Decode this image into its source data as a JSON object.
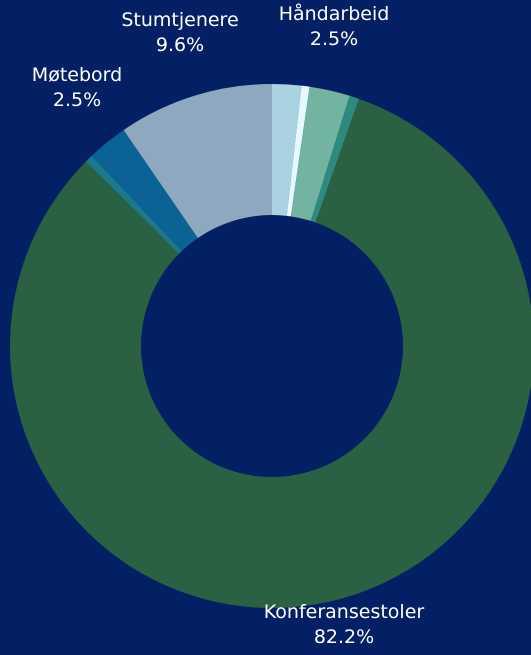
{
  "chart_data": {
    "type": "pie",
    "donut": true,
    "title": "",
    "legend": "none",
    "background": "#032064",
    "slices": [
      {
        "label": "",
        "value": 1.8,
        "color": "#a9d3e1"
      },
      {
        "label": "",
        "value": 0.5,
        "color": "#e8f8ff"
      },
      {
        "label": "Håndarbeid",
        "value": 2.5,
        "value_label": "2.5%",
        "color": "#72b3a1"
      },
      {
        "label": "",
        "value": 0.6,
        "color": "#2e8a7d"
      },
      {
        "label": "Konferansestoler",
        "value": 82.2,
        "value_label": "82.2%",
        "color": "#2a6142"
      },
      {
        "label": "",
        "value": 0.5,
        "color": "#1a7a8c"
      },
      {
        "label": "Møtebord",
        "value": 2.5,
        "value_label": "2.5%",
        "color": "#0a6295"
      },
      {
        "label": "Stumtjenere",
        "value": 9.6,
        "value_label": "9.6%",
        "color": "#8ea9bf"
      }
    ]
  }
}
